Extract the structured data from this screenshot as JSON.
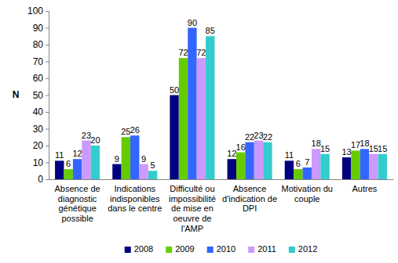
{
  "chart_data": {
    "type": "bar",
    "y_label": "N",
    "categories": [
      "Absence de diagnostic génétique possible",
      "Indications indisponibles dans le centre",
      "Difficulté ou impossibilité de mise en oeuvre de l'AMP",
      "Absence d'indication de DPI",
      "Motivation du couple",
      "Autres"
    ],
    "series": [
      {
        "name": "2008",
        "color": "#000080",
        "values": [
          11,
          9,
          50,
          12,
          11,
          13
        ]
      },
      {
        "name": "2009",
        "color": "#66cc00",
        "values": [
          6,
          25,
          72,
          16,
          6,
          17
        ]
      },
      {
        "name": "2010",
        "color": "#3366ff",
        "values": [
          12,
          26,
          90,
          22,
          7,
          18
        ]
      },
      {
        "name": "2011",
        "color": "#cc99ff",
        "values": [
          23,
          9,
          72,
          23,
          18,
          15
        ]
      },
      {
        "name": "2012",
        "color": "#33cccc",
        "values": [
          20,
          5,
          85,
          22,
          15,
          15
        ]
      }
    ],
    "ylim": [
      0,
      100
    ],
    "yticks": [
      0,
      10,
      20,
      30,
      40,
      50,
      60,
      70,
      80,
      90,
      100
    ],
    "grid": false,
    "legend": "bottom",
    "data_labels": true
  }
}
